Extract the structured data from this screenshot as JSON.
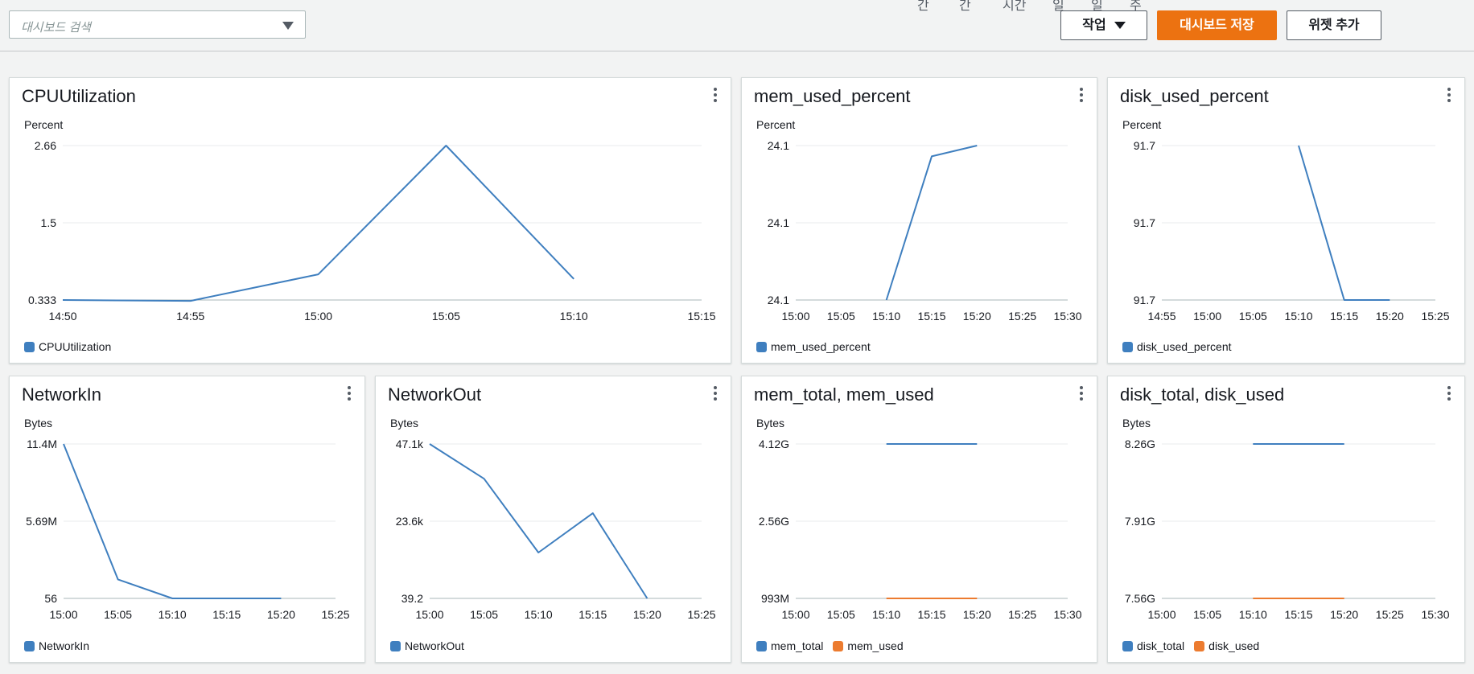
{
  "search": {
    "placeholder": "대시보드 검색"
  },
  "time_chips": [
    "간",
    "간",
    "시간",
    "일",
    "일",
    "주"
  ],
  "toolbar": {
    "actions_label": "작업",
    "save_label": "대시보드 저장",
    "add_widget_label": "위젯 추가"
  },
  "colors": {
    "blue": "#3f7fbf",
    "orange": "#ec7b2f",
    "grid": "#e9ebed",
    "axis": "#aab7b8"
  },
  "widgets": [
    {
      "title": "CPUUtilization",
      "unit": "Percent",
      "legend": [
        {
          "name": "CPUUtilization",
          "color": "#3f7fbf"
        }
      ]
    },
    {
      "title": "mem_used_percent",
      "unit": "Percent",
      "legend": [
        {
          "name": "mem_used_percent",
          "color": "#3f7fbf"
        }
      ]
    },
    {
      "title": "disk_used_percent",
      "unit": "Percent",
      "legend": [
        {
          "name": "disk_used_percent",
          "color": "#3f7fbf"
        }
      ]
    },
    {
      "title": "NetworkIn",
      "unit": "Bytes",
      "legend": [
        {
          "name": "NetworkIn",
          "color": "#3f7fbf"
        }
      ]
    },
    {
      "title": "NetworkOut",
      "unit": "Bytes",
      "legend": [
        {
          "name": "NetworkOut",
          "color": "#3f7fbf"
        }
      ]
    },
    {
      "title": "mem_total, mem_used",
      "unit": "Bytes",
      "legend": [
        {
          "name": "mem_total",
          "color": "#3f7fbf"
        },
        {
          "name": "mem_used",
          "color": "#ec7b2f"
        }
      ]
    },
    {
      "title": "disk_total, disk_used",
      "unit": "Bytes",
      "legend": [
        {
          "name": "disk_total",
          "color": "#3f7fbf"
        },
        {
          "name": "disk_used",
          "color": "#ec7b2f"
        }
      ]
    }
  ],
  "chart_data": [
    {
      "type": "line",
      "title": "CPUUtilization",
      "ylabel": "Percent",
      "x_ticks": [
        "14:50",
        "14:55",
        "15:00",
        "15:05",
        "15:10",
        "15:15"
      ],
      "y_ticks": [
        "2.66",
        "1.5",
        "0.333"
      ],
      "ylim": [
        0.333,
        2.66
      ],
      "series": [
        {
          "name": "CPUUtilization",
          "color": "#3f7fbf",
          "x": [
            "14:50",
            "14:55",
            "15:00",
            "15:05",
            "15:10"
          ],
          "y": [
            0.333,
            0.32,
            0.72,
            2.66,
            0.65
          ]
        }
      ]
    },
    {
      "type": "line",
      "title": "mem_used_percent",
      "ylabel": "Percent",
      "x_ticks": [
        "15:00",
        "15:05",
        "15:10",
        "15:15",
        "15:20",
        "15:25",
        "15:30"
      ],
      "y_ticks": [
        "24.1",
        "24.1",
        "24.1"
      ],
      "ylim": [
        0,
        1
      ],
      "series": [
        {
          "name": "mem_used_percent",
          "color": "#3f7fbf",
          "x": [
            "15:10",
            "15:15",
            "15:20"
          ],
          "y": [
            0,
            0.93,
            1
          ]
        }
      ]
    },
    {
      "type": "line",
      "title": "disk_used_percent",
      "ylabel": "Percent",
      "x_ticks": [
        "14:55",
        "15:00",
        "15:05",
        "15:10",
        "15:15",
        "15:20",
        "15:25"
      ],
      "y_ticks": [
        "91.7",
        "91.7",
        "91.7"
      ],
      "ylim": [
        0,
        1
      ],
      "series": [
        {
          "name": "disk_used_percent",
          "color": "#3f7fbf",
          "x": [
            "15:10",
            "15:15",
            "15:20"
          ],
          "y": [
            1,
            0,
            0
          ]
        }
      ]
    },
    {
      "type": "line",
      "title": "NetworkIn",
      "ylabel": "Bytes",
      "x_ticks": [
        "15:00",
        "15:05",
        "15:10",
        "15:15",
        "15:20",
        "15:25"
      ],
      "y_ticks": [
        "11.4M",
        "5.69M",
        "56"
      ],
      "ylim": [
        56,
        11400000
      ],
      "series": [
        {
          "name": "NetworkIn",
          "color": "#3f7fbf",
          "x": [
            "15:00",
            "15:05",
            "15:10",
            "15:15",
            "15:20"
          ],
          "y": [
            11400000,
            1400000,
            56,
            56,
            56
          ]
        }
      ]
    },
    {
      "type": "line",
      "title": "NetworkOut",
      "ylabel": "Bytes",
      "x_ticks": [
        "15:00",
        "15:05",
        "15:10",
        "15:15",
        "15:20",
        "15:25"
      ],
      "y_ticks": [
        "47.1k",
        "23.6k",
        "39.2"
      ],
      "ylim": [
        39.2,
        47100
      ],
      "series": [
        {
          "name": "NetworkOut",
          "color": "#3f7fbf",
          "x": [
            "15:00",
            "15:05",
            "15:10",
            "15:15",
            "15:20"
          ],
          "y": [
            47100,
            36500,
            14000,
            26000,
            39.2
          ]
        }
      ]
    },
    {
      "type": "line",
      "title": "mem_total, mem_used",
      "ylabel": "Bytes",
      "x_ticks": [
        "15:00",
        "15:05",
        "15:10",
        "15:15",
        "15:20",
        "15:25",
        "15:30"
      ],
      "y_ticks": [
        "4.12G",
        "2.56G",
        "993M"
      ],
      "ylim": [
        0.993,
        4.12
      ],
      "series": [
        {
          "name": "mem_total",
          "color": "#3f7fbf",
          "x": [
            "15:10",
            "15:15",
            "15:20"
          ],
          "y": [
            4.12,
            4.12,
            4.12
          ]
        },
        {
          "name": "mem_used",
          "color": "#ec7b2f",
          "x": [
            "15:10",
            "15:15",
            "15:20"
          ],
          "y": [
            0.993,
            0.993,
            0.993
          ]
        }
      ]
    },
    {
      "type": "line",
      "title": "disk_total, disk_used",
      "ylabel": "Bytes",
      "x_ticks": [
        "15:00",
        "15:05",
        "15:10",
        "15:15",
        "15:20",
        "15:25",
        "15:30"
      ],
      "y_ticks": [
        "8.26G",
        "7.91G",
        "7.56G"
      ],
      "ylim": [
        7.56,
        8.26
      ],
      "series": [
        {
          "name": "disk_total",
          "color": "#3f7fbf",
          "x": [
            "15:10",
            "15:15",
            "15:20"
          ],
          "y": [
            8.26,
            8.26,
            8.26
          ]
        },
        {
          "name": "disk_used",
          "color": "#ec7b2f",
          "x": [
            "15:10",
            "15:15",
            "15:20"
          ],
          "y": [
            7.56,
            7.56,
            7.56
          ]
        }
      ]
    }
  ]
}
